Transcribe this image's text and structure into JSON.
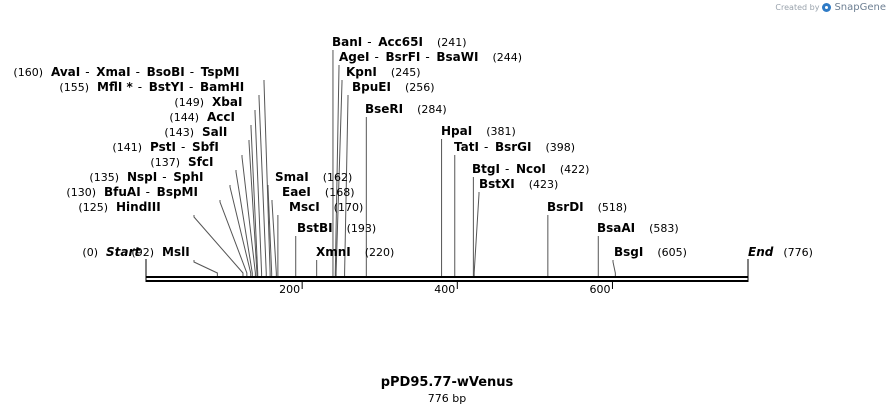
{
  "brand": {
    "created_by": "Created by",
    "name": "SnapGene"
  },
  "plasmid": {
    "name": "pPD95.77-wVenus",
    "length_label": "776 bp",
    "length": 776
  },
  "axis": {
    "ticks": [
      "200",
      "400",
      "600"
    ],
    "tick_values": [
      200,
      400,
      600
    ]
  },
  "terminals": [
    {
      "label": "Start",
      "pos": "(0)",
      "value": 0
    },
    {
      "label": "End",
      "pos": "(776)",
      "value": 776
    }
  ],
  "sites": [
    {
      "names": [
        "BanI",
        "Acc65I"
      ],
      "pos": "(241)",
      "value": 241
    },
    {
      "names": [
        "AgeI",
        "BsrFI",
        "BsaWI"
      ],
      "pos": "(244)",
      "value": 244
    },
    {
      "names": [
        "KpnI"
      ],
      "pos": "(245)",
      "value": 245
    },
    {
      "names": [
        "BpuEI"
      ],
      "pos": "(256)",
      "value": 256
    },
    {
      "names": [
        "BseRI"
      ],
      "pos": "(284)",
      "value": 284
    },
    {
      "names": [
        "AvaI",
        "XmaI",
        "BsoBI",
        "TspMI"
      ],
      "pos": "(160)",
      "value": 160
    },
    {
      "names": [
        "MflI *",
        "BstYI",
        "BamHI"
      ],
      "pos": "(155)",
      "value": 155
    },
    {
      "names": [
        "XbaI"
      ],
      "pos": "(149)",
      "value": 149
    },
    {
      "names": [
        "AccI"
      ],
      "pos": "(144)",
      "value": 144
    },
    {
      "names": [
        "SalI"
      ],
      "pos": "(143)",
      "value": 143
    },
    {
      "names": [
        "PstI",
        "SbfI"
      ],
      "pos": "(141)",
      "value": 141
    },
    {
      "names": [
        "SfcI"
      ],
      "pos": "(137)",
      "value": 137
    },
    {
      "names": [
        "NspI",
        "SphI"
      ],
      "pos": "(135)",
      "value": 135
    },
    {
      "names": [
        "BfuAI",
        "BspMI"
      ],
      "pos": "(130)",
      "value": 130
    },
    {
      "names": [
        "HindIII"
      ],
      "pos": "(125)",
      "value": 125
    },
    {
      "names": [
        "MslI"
      ],
      "pos": "(92)",
      "value": 92
    },
    {
      "names": [
        "SmaI"
      ],
      "pos": "(162)",
      "value": 162
    },
    {
      "names": [
        "EaeI"
      ],
      "pos": "(168)",
      "value": 168
    },
    {
      "names": [
        "MscI"
      ],
      "pos": "(170)",
      "value": 170
    },
    {
      "names": [
        "BstBI"
      ],
      "pos": "(193)",
      "value": 193
    },
    {
      "names": [
        "XmnI"
      ],
      "pos": "(220)",
      "value": 220
    },
    {
      "names": [
        "HpaI"
      ],
      "pos": "(381)",
      "value": 381
    },
    {
      "names": [
        "TatI",
        "BsrGI"
      ],
      "pos": "(398)",
      "value": 398
    },
    {
      "names": [
        "BtgI",
        "NcoI"
      ],
      "pos": "(422)",
      "value": 422
    },
    {
      "names": [
        "BstXI"
      ],
      "pos": "(423)",
      "value": 423
    },
    {
      "names": [
        "BsrDI"
      ],
      "pos": "(518)",
      "value": 518
    },
    {
      "names": [
        "BsaAI"
      ],
      "pos": "(583)",
      "value": 583
    },
    {
      "names": [
        "BsgI"
      ],
      "pos": "(605)",
      "value": 605
    }
  ]
}
